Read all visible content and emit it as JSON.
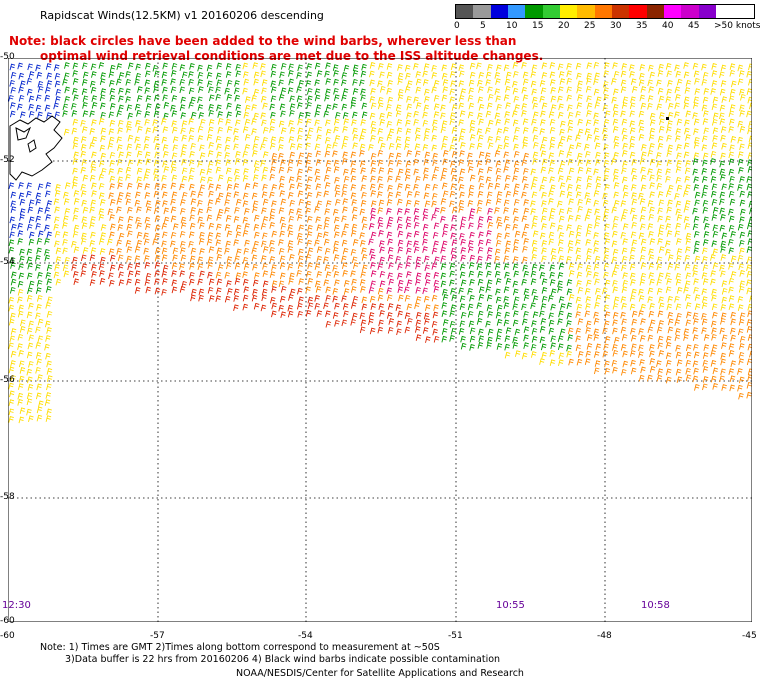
{
  "title": "Rapidscat Winds(12.5KM) v1 20160206 descending",
  "notice": {
    "line1": "Note: black circles have been added to the wind barbs, wherever less than",
    "line2": "optimal wind retrieval conditions are met due to the ISS altitude changes."
  },
  "legend": {
    "ticks": [
      "0",
      "5",
      "10",
      "15",
      "20",
      "25",
      "30",
      "35",
      "40",
      "45",
      ">50 knots"
    ],
    "colors": [
      "#555555",
      "#9a9a9a",
      "#0000dd",
      "#3399ff",
      "#009900",
      "#33cc33",
      "#ffee00",
      "#ffbb00",
      "#ff7700",
      "#cc3300",
      "#ff0000",
      "#8b2500",
      "#ff00ff",
      "#cc00cc",
      "#8800cc"
    ]
  },
  "map": {
    "lat_labels": [
      "-50",
      "-52",
      "-54",
      "-56",
      "-58",
      "-60"
    ],
    "lon_labels": [
      "-60",
      "-57",
      "-54",
      "-51",
      "-48",
      "-45"
    ],
    "time_labels": [
      "12:30",
      "10:55",
      "10:58"
    ],
    "barb_colors": {
      "blue": "#0022cc",
      "green": "#009900",
      "yellow": "#ffdd00",
      "orange": "#ff8800",
      "red": "#dd2200",
      "magenta": "#dd0066",
      "black": "#000000"
    }
  },
  "footer": {
    "line1": "Note: 1) Times are GMT 2)Times along bottom correspond to measurement at ~50S",
    "line2": "3)Data buffer is 22 hrs from 20160206 4) Black wind barbs indicate possible contamination",
    "credit": "NOAA/NESDIS/Center for Satellite Applications and Research"
  }
}
